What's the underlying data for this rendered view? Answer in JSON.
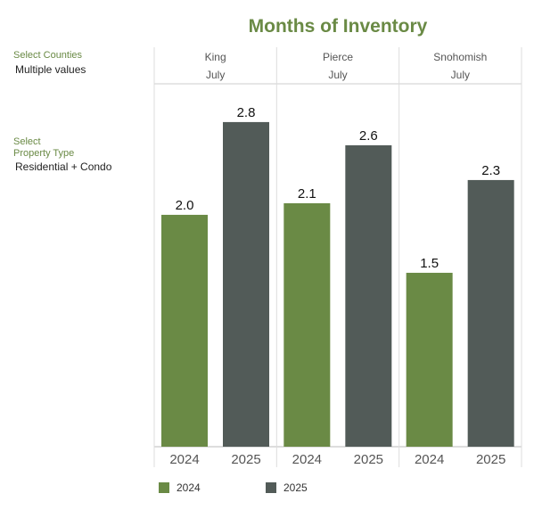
{
  "title": "Months of Inventory",
  "filters": {
    "counties_label": "Select Counties",
    "counties_value": "Multiple values",
    "property_label_line1": "Select",
    "property_label_line2": "Property Type",
    "property_value": "Residential + Condo"
  },
  "colors": {
    "y2024": "#6a8a45",
    "y2025": "#525b58",
    "accent": "#6a8a45"
  },
  "chart_data": {
    "type": "bar",
    "title": "Months of Inventory",
    "panels": [
      {
        "county": "King",
        "month": "July"
      },
      {
        "county": "Pierce",
        "month": "July"
      },
      {
        "county": "Snohomish",
        "month": "July"
      }
    ],
    "categories": [
      "King",
      "Pierce",
      "Snohomish"
    ],
    "series": [
      {
        "name": "2024",
        "values": [
          2.0,
          2.1,
          1.5
        ]
      },
      {
        "name": "2025",
        "values": [
          2.8,
          2.6,
          2.3
        ]
      }
    ],
    "value_labels": [
      [
        "2.0",
        "2.1",
        "1.5"
      ],
      [
        "2.8",
        "2.6",
        "2.3"
      ]
    ],
    "ylim": [
      0,
      3.13
    ],
    "legend": [
      "2024",
      "2025"
    ],
    "legend_position": "bottom"
  }
}
